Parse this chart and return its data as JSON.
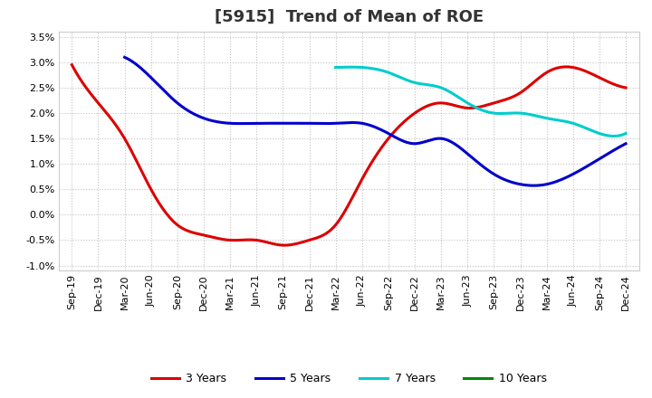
{
  "title": "[5915]  Trend of Mean of ROE",
  "x_labels": [
    "Sep-19",
    "Dec-19",
    "Mar-20",
    "Jun-20",
    "Sep-20",
    "Dec-20",
    "Mar-21",
    "Jun-21",
    "Sep-21",
    "Dec-21",
    "Mar-22",
    "Jun-22",
    "Sep-22",
    "Dec-22",
    "Mar-23",
    "Jun-23",
    "Sep-23",
    "Dec-23",
    "Mar-24",
    "Jun-24",
    "Sep-24",
    "Dec-24"
  ],
  "ylim": [
    -0.011,
    0.036
  ],
  "yticks": [
    -0.01,
    -0.005,
    0.0,
    0.005,
    0.01,
    0.015,
    0.02,
    0.025,
    0.03,
    0.035
  ],
  "ytick_labels": [
    "-1.0%",
    "-0.5%",
    "0.0%",
    "0.5%",
    "1.0%",
    "1.5%",
    "2.0%",
    "2.5%",
    "3.0%",
    "3.5%"
  ],
  "series": {
    "3 Years": {
      "color": "#dd0000",
      "values": [
        0.0295,
        0.022,
        0.015,
        0.005,
        -0.002,
        -0.004,
        -0.005,
        -0.005,
        -0.006,
        -0.005,
        -0.002,
        0.007,
        0.015,
        0.02,
        0.022,
        0.021,
        0.022,
        0.024,
        0.028,
        0.029,
        0.027,
        0.025
      ]
    },
    "5 Years": {
      "color": "#0000cc",
      "values": [
        null,
        null,
        0.031,
        0.027,
        0.022,
        0.019,
        0.018,
        0.018,
        0.018,
        0.018,
        0.018,
        0.018,
        0.016,
        0.014,
        0.015,
        0.012,
        0.008,
        0.006,
        0.006,
        0.008,
        0.011,
        0.014
      ]
    },
    "7 Years": {
      "color": "#00cccc",
      "values": [
        null,
        null,
        null,
        null,
        null,
        null,
        null,
        null,
        null,
        null,
        0.029,
        0.029,
        0.028,
        0.026,
        0.025,
        0.022,
        0.02,
        0.02,
        0.019,
        0.018,
        0.016,
        0.016
      ]
    },
    "10 Years": {
      "color": "#008800",
      "values": [
        null,
        null,
        null,
        null,
        null,
        null,
        null,
        null,
        null,
        null,
        null,
        null,
        null,
        null,
        null,
        null,
        null,
        null,
        null,
        null,
        null,
        null
      ]
    }
  },
  "legend": [
    "3 Years",
    "5 Years",
    "7 Years",
    "10 Years"
  ],
  "legend_colors": [
    "#dd0000",
    "#0000cc",
    "#00cccc",
    "#008800"
  ],
  "background_color": "#ffffff",
  "grid_color": "#bbbbbb",
  "title_fontsize": 13,
  "tick_fontsize": 8,
  "legend_fontsize": 9
}
